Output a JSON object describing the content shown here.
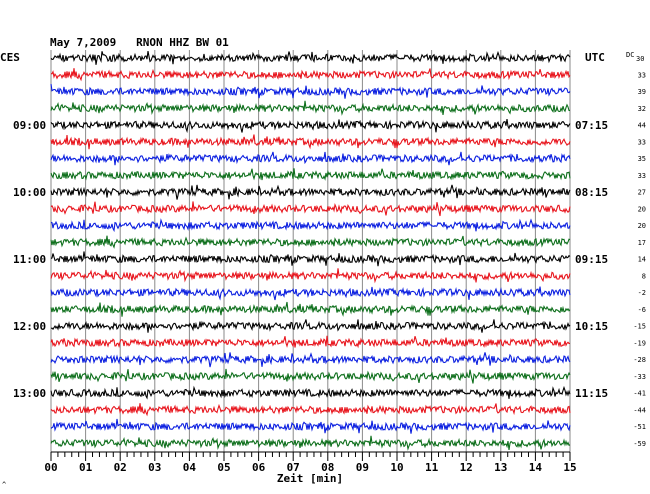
{
  "header": {
    "title": "May 7,2009   RNON HHZ BW 01",
    "left_label": "CES",
    "right_label": "UTC",
    "dc_label": "DC",
    "dc_first_value": "30",
    "corner_mark": "^"
  },
  "colors": {
    "trace_cycle": [
      "#000000",
      "#e8141c",
      "#0a1ee0",
      "#0c6e1a"
    ],
    "grid": "#8a8a8a",
    "axis": "#000000",
    "background": "#ffffff"
  },
  "chart_data": {
    "type": "line",
    "title": "May 7,2009   RNON HHZ BW 01",
    "xlabel": "Zeit [min]",
    "xlim": [
      0,
      15
    ],
    "x_ticks": [
      "00",
      "01",
      "02",
      "03",
      "04",
      "05",
      "06",
      "07",
      "08",
      "09",
      "10",
      "11",
      "12",
      "13",
      "14",
      "15"
    ],
    "left_time_labels": [
      {
        "trace_index": 4,
        "label": "09:00"
      },
      {
        "trace_index": 8,
        "label": "10:00"
      },
      {
        "trace_index": 12,
        "label": "11:00"
      },
      {
        "trace_index": 16,
        "label": "12:00"
      },
      {
        "trace_index": 20,
        "label": "13:00"
      }
    ],
    "right_time_labels": [
      {
        "trace_index": 4,
        "label": "07:15"
      },
      {
        "trace_index": 8,
        "label": "08:15"
      },
      {
        "trace_index": 12,
        "label": "09:15"
      },
      {
        "trace_index": 16,
        "label": "10:15"
      },
      {
        "trace_index": 20,
        "label": "11:15"
      }
    ],
    "dc_offsets": [
      "33",
      "39",
      "32",
      "44",
      "33",
      "35",
      "33",
      "27",
      "20",
      "20",
      "17",
      "14",
      "8",
      "-2",
      "-6",
      "-15",
      "-19",
      "-28",
      "-33",
      "-41",
      "-44",
      "-51",
      "-59"
    ],
    "trace_count": 24,
    "minutes_per_trace": 15,
    "grid": true
  }
}
